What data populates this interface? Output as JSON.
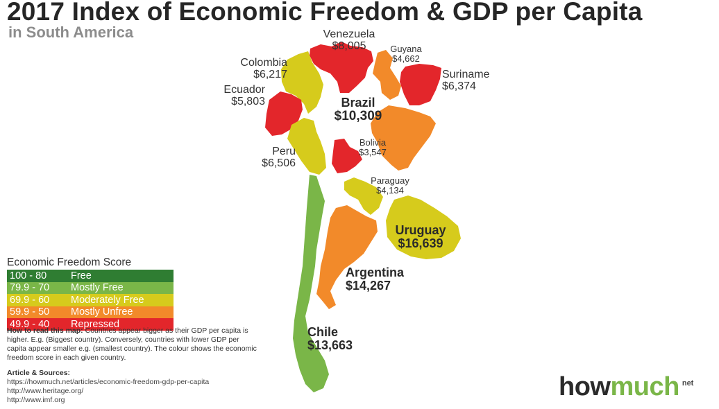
{
  "title": "2017 Index of Economic Freedom & GDP per Capita",
  "subtitle": "in South America",
  "colors": {
    "free": "#2f7d32",
    "mostly_free": "#7ab648",
    "moderately_free": "#d6cb1c",
    "mostly_unfree": "#f28a2a",
    "repressed": "#e3262b"
  },
  "countries": [
    {
      "name": "Venezuela",
      "gdp": "$8,005",
      "category": "repressed"
    },
    {
      "name": "Guyana",
      "gdp": "$4,662",
      "category": "mostly_unfree"
    },
    {
      "name": "Suriname",
      "gdp": "$6,374",
      "category": "repressed"
    },
    {
      "name": "Colombia",
      "gdp": "$6,217",
      "category": "moderately_free"
    },
    {
      "name": "Ecuador",
      "gdp": "$5,803",
      "category": "repressed"
    },
    {
      "name": "Brazil",
      "gdp": "$10,309",
      "category": "mostly_unfree"
    },
    {
      "name": "Peru",
      "gdp": "$6,506",
      "category": "moderately_free"
    },
    {
      "name": "Bolivia",
      "gdp": "$3,547",
      "category": "repressed"
    },
    {
      "name": "Paraguay",
      "gdp": "$4,134",
      "category": "moderately_free"
    },
    {
      "name": "Uruguay",
      "gdp": "$16,639",
      "category": "moderately_free"
    },
    {
      "name": "Argentina",
      "gdp": "$14,267",
      "category": "mostly_unfree"
    },
    {
      "name": "Chile",
      "gdp": "$13,663",
      "category": "mostly_free"
    }
  ],
  "legend": {
    "title": "Economic Freedom Score",
    "items": [
      {
        "range": "100 - 80",
        "label": "Free",
        "color": "#2f7d32"
      },
      {
        "range": "79.9 - 70",
        "label": "Mostly Free",
        "color": "#7ab648"
      },
      {
        "range": "69.9 - 60",
        "label": "Moderately Free",
        "color": "#d6cb1c"
      },
      {
        "range": "59.9 - 50",
        "label": "Mostly Unfree",
        "color": "#f28a2a"
      },
      {
        "range": "49.9 - 40",
        "label": "Repressed",
        "color": "#e3262b"
      }
    ]
  },
  "how_to": {
    "heading": "How to read this map:",
    "text": " Countries appear bigger as their GDP per capita is higher. E.g. (Biggest country). Conversely, countries with lower GDP per capita appear smaller e.g. (smallest country). The colour shows the economic freedom score in each given country."
  },
  "sources": {
    "heading": "Article & Sources:",
    "links": [
      "https://howmuch.net/articles/economic-freedom-gdp-per-capita",
      "http://www.heritage.org/",
      "http://www.imf.org"
    ]
  },
  "logo": {
    "how": "how",
    "much": "much",
    "net": "net"
  }
}
